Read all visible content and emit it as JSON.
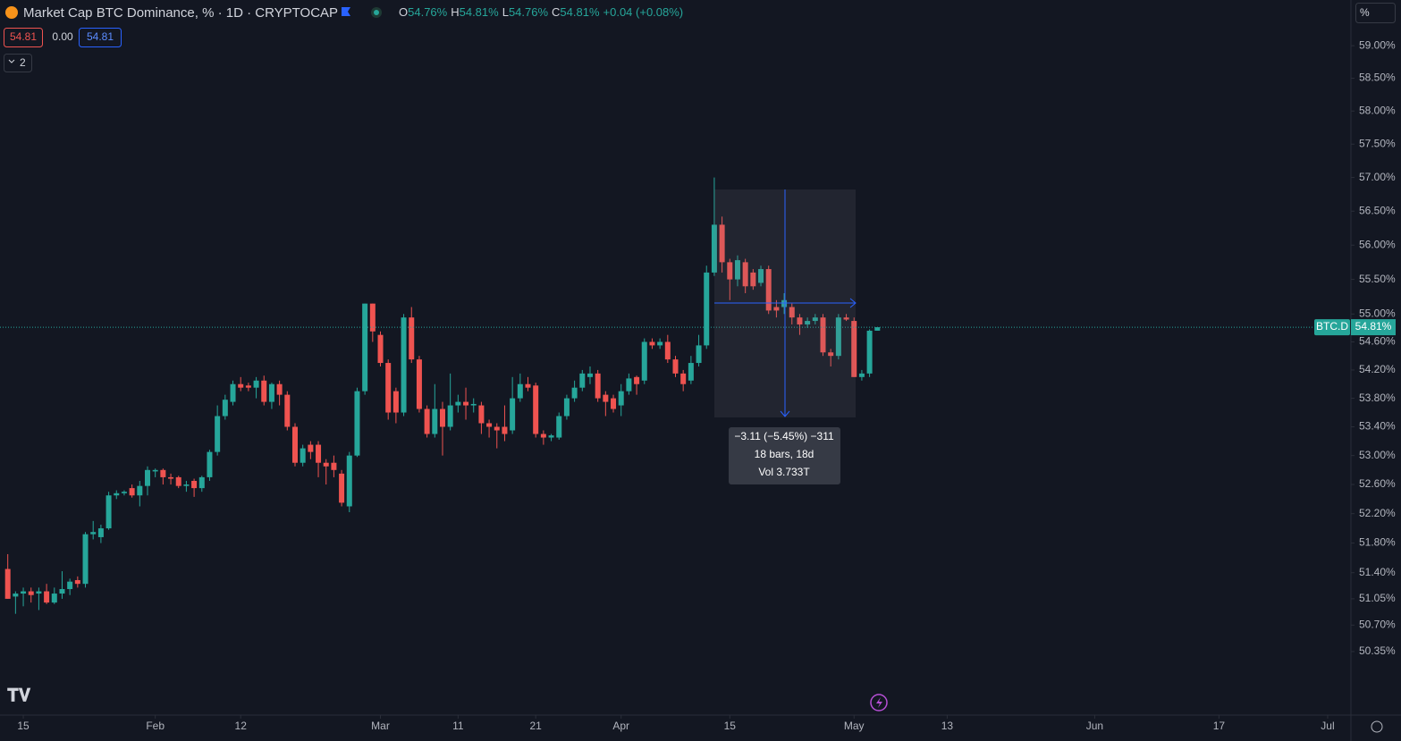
{
  "header": {
    "title": "Market Cap BTC Dominance, % · 1D · CRYPTOCAP",
    "o_label": "O",
    "o": "54.76%",
    "h_label": "H",
    "h": "54.81%",
    "l_label": "L",
    "l": "54.76%",
    "c_label": "C",
    "c": "54.81%",
    "change": "+0.04 (+0.08%)",
    "bid": "54.81",
    "spread": "0.00",
    "ask": "54.81",
    "indicators": "2",
    "scale_button": "%"
  },
  "price_tag": {
    "symbol": "BTC.D",
    "value": "54.81%"
  },
  "measure": {
    "line1": "−3.11 (−5.45%) −311",
    "line2": "18 bars, 18d",
    "line3": "Vol 3.733T"
  },
  "chart_data": {
    "type": "candlestick",
    "log_scale": true,
    "grid": false,
    "up_color": "#26a69a",
    "down_color": "#ef5350",
    "x": [
      "01-13",
      "01-14",
      "01-15",
      "01-16",
      "01-17",
      "01-18",
      "01-19",
      "01-20",
      "01-21",
      "01-22",
      "01-23",
      "01-24",
      "01-25",
      "01-26",
      "01-27",
      "01-28",
      "01-29",
      "01-30",
      "01-31",
      "02-01",
      "02-02",
      "02-03",
      "02-04",
      "02-05",
      "02-06",
      "02-07",
      "02-08",
      "02-09",
      "02-10",
      "02-11",
      "02-12",
      "02-13",
      "02-14",
      "02-15",
      "02-16",
      "02-17",
      "02-18",
      "02-19",
      "02-20",
      "02-21",
      "02-22",
      "02-23",
      "02-24",
      "02-25",
      "02-26",
      "02-27",
      "02-28",
      "02-29",
      "03-01",
      "03-02",
      "03-03",
      "03-04",
      "03-05",
      "03-06",
      "03-07",
      "03-08",
      "03-09",
      "03-10",
      "03-11",
      "03-12",
      "03-13",
      "03-14",
      "03-15",
      "03-16",
      "03-17",
      "03-18",
      "03-19",
      "03-20",
      "03-21",
      "03-22",
      "03-23",
      "03-24",
      "03-25",
      "03-26",
      "03-27",
      "03-28",
      "03-29",
      "03-30",
      "03-31",
      "04-01",
      "04-02",
      "04-03",
      "04-04",
      "04-05",
      "04-06",
      "04-07",
      "04-08",
      "04-09",
      "04-10",
      "04-11",
      "04-12",
      "04-13",
      "04-14",
      "04-15",
      "04-16",
      "04-17",
      "04-18",
      "04-19",
      "04-20",
      "04-21",
      "04-22",
      "04-23",
      "04-24",
      "04-25",
      "04-26",
      "04-27",
      "04-28",
      "04-29",
      "04-30",
      "05-01",
      "05-02",
      "05-03",
      "05-04"
    ],
    "open": [
      51.45,
      51.08,
      51.12,
      51.15,
      51.12,
      51.15,
      51.0,
      51.12,
      51.18,
      51.3,
      51.25,
      51.92,
      51.88,
      52.0,
      52.45,
      52.48,
      52.55,
      52.45,
      52.58,
      52.78,
      52.8,
      52.7,
      52.7,
      52.58,
      52.65,
      52.55,
      52.7,
      53.05,
      53.55,
      53.75,
      54.0,
      53.98,
      53.95,
      54.05,
      53.75,
      54.0,
      53.85,
      53.4,
      52.9,
      53.15,
      53.15,
      52.9,
      52.9,
      52.75,
      52.3,
      53.0,
      53.9,
      55.15,
      54.7,
      54.3,
      53.9,
      53.6,
      54.95,
      54.35,
      53.65,
      53.3,
      53.65,
      53.4,
      53.7,
      53.75,
      53.7,
      53.7,
      53.45,
      53.4,
      53.4,
      53.35,
      53.8,
      54.0,
      53.98,
      53.3,
      53.25,
      53.25,
      53.55,
      53.8,
      53.95,
      54.1,
      54.15,
      53.85,
      53.8,
      53.7,
      53.9,
      54.1,
      54.05,
      54.6,
      54.55,
      54.6,
      54.35,
      54.15,
      54.05,
      54.3,
      54.55,
      55.6,
      56.3,
      55.75,
      55.5,
      55.75,
      55.6,
      55.45,
      55.65,
      55.1,
      55.1,
      55.1,
      54.95,
      54.85,
      54.9,
      54.95,
      54.45,
      54.4,
      54.95,
      54.9,
      54.1,
      54.15,
      54.76
    ],
    "high": [
      51.65,
      51.15,
      51.2,
      51.2,
      51.2,
      51.25,
      51.2,
      51.42,
      51.32,
      51.35,
      51.95,
      52.1,
      52.05,
      52.5,
      52.52,
      52.52,
      52.6,
      52.65,
      52.85,
      52.82,
      52.82,
      52.75,
      52.72,
      52.65,
      52.68,
      52.72,
      53.08,
      53.7,
      53.85,
      54.05,
      54.1,
      54.02,
      54.1,
      54.12,
      54.02,
      54.05,
      53.9,
      53.45,
      53.15,
      53.2,
      53.2,
      52.95,
      53.0,
      52.8,
      53.05,
      53.95,
      55.15,
      55.15,
      54.75,
      54.35,
      53.95,
      55.0,
      55.1,
      54.4,
      53.7,
      54.0,
      53.75,
      54.15,
      53.85,
      53.95,
      53.8,
      53.75,
      53.5,
      53.45,
      53.7,
      54.1,
      54.15,
      54.1,
      54.02,
      53.35,
      53.3,
      53.6,
      53.85,
      54.05,
      54.2,
      54.25,
      54.2,
      53.9,
      53.85,
      54.0,
      54.15,
      54.12,
      54.65,
      54.65,
      54.65,
      54.7,
      54.4,
      54.2,
      54.4,
      54.7,
      55.7,
      57.0,
      56.42,
      55.8,
      55.85,
      55.8,
      55.65,
      55.7,
      55.7,
      55.2,
      55.3,
      55.15,
      55.0,
      54.95,
      55.0,
      55.0,
      54.5,
      55.0,
      55.0,
      54.95,
      54.2,
      54.78,
      54.81
    ],
    "low": [
      51.05,
      50.85,
      50.95,
      51.0,
      50.9,
      50.98,
      50.98,
      51.05,
      51.1,
      51.2,
      51.2,
      51.85,
      51.8,
      51.98,
      52.4,
      52.45,
      52.42,
      52.3,
      52.45,
      52.7,
      52.6,
      52.6,
      52.55,
      52.5,
      52.43,
      52.5,
      52.65,
      53.0,
      53.5,
      53.7,
      53.9,
      53.9,
      53.8,
      53.7,
      53.65,
      53.7,
      53.35,
      52.85,
      52.85,
      52.95,
      52.7,
      52.6,
      52.7,
      52.3,
      52.22,
      52.98,
      53.85,
      54.6,
      54.25,
      53.5,
      53.45,
      53.55,
      54.3,
      53.6,
      53.25,
      53.25,
      53.0,
      53.35,
      53.6,
      53.5,
      53.6,
      53.3,
      53.25,
      53.1,
      53.2,
      53.3,
      53.75,
      53.9,
      53.25,
      53.15,
      53.2,
      53.22,
      53.5,
      53.75,
      53.9,
      54.0,
      53.75,
      53.55,
      53.6,
      53.55,
      53.85,
      53.85,
      54.0,
      54.5,
      54.5,
      54.3,
      54.1,
      53.9,
      54.0,
      54.25,
      54.5,
      55.55,
      55.6,
      55.2,
      55.4,
      55.3,
      55.35,
      55.4,
      55.0,
      54.95,
      55.0,
      54.85,
      54.7,
      54.8,
      54.85,
      54.4,
      54.25,
      54.35,
      54.9,
      54.1,
      54.05,
      54.1,
      54.76
    ],
    "close": [
      51.05,
      51.12,
      51.15,
      51.1,
      51.15,
      51.0,
      51.12,
      51.18,
      51.28,
      51.25,
      51.92,
      51.95,
      52.0,
      52.45,
      52.48,
      52.5,
      52.45,
      52.58,
      52.8,
      52.8,
      52.7,
      52.68,
      52.58,
      52.6,
      52.55,
      52.7,
      53.05,
      53.55,
      53.78,
      54.0,
      53.95,
      53.95,
      54.05,
      53.75,
      54.0,
      53.85,
      53.4,
      52.9,
      53.1,
      53.05,
      52.9,
      52.85,
      52.8,
      52.35,
      53.0,
      53.9,
      55.15,
      54.75,
      54.3,
      53.6,
      53.6,
      54.95,
      54.35,
      53.65,
      53.3,
      53.65,
      53.4,
      53.7,
      53.75,
      53.7,
      53.72,
      53.45,
      53.4,
      53.35,
      53.3,
      53.8,
      54.0,
      53.95,
      53.3,
      53.25,
      53.28,
      53.55,
      53.8,
      53.95,
      54.15,
      54.15,
      53.8,
      53.75,
      53.65,
      53.9,
      54.08,
      54.0,
      54.6,
      54.55,
      54.6,
      54.35,
      54.15,
      54.0,
      54.3,
      54.55,
      55.6,
      56.3,
      55.75,
      55.5,
      55.78,
      55.4,
      55.4,
      55.65,
      55.05,
      55.05,
      55.2,
      54.95,
      54.85,
      54.9,
      54.95,
      54.45,
      54.4,
      54.95,
      54.92,
      54.1,
      54.15,
      54.76,
      54.81
    ],
    "ylim": [
      49.52,
      59.71
    ],
    "yticks": [
      {
        "value": 59,
        "label": "59.00%"
      },
      {
        "value": 58.5,
        "label": "58.50%"
      },
      {
        "value": 58,
        "label": "58.00%"
      },
      {
        "value": 57.5,
        "label": "57.50%"
      },
      {
        "value": 57,
        "label": "57.00%"
      },
      {
        "value": 56.5,
        "label": "56.50%"
      },
      {
        "value": 56,
        "label": "56.00%"
      },
      {
        "value": 55.5,
        "label": "55.50%"
      },
      {
        "value": 55,
        "label": "55.00%"
      },
      {
        "value": 54.6,
        "label": "54.60%"
      },
      {
        "value": 54.2,
        "label": "54.20%"
      },
      {
        "value": 53.8,
        "label": "53.80%"
      },
      {
        "value": 53.4,
        "label": "53.40%"
      },
      {
        "value": 53,
        "label": "53.00%"
      },
      {
        "value": 52.6,
        "label": "52.60%"
      },
      {
        "value": 52.2,
        "label": "52.20%"
      },
      {
        "value": 51.8,
        "label": "51.80%"
      },
      {
        "value": 51.4,
        "label": "51.40%"
      },
      {
        "value": 51.05,
        "label": "51.05%"
      },
      {
        "value": 50.7,
        "label": "50.70%"
      },
      {
        "value": 50.35,
        "label": "50.35%"
      }
    ],
    "xlim": [
      "01-12",
      "07-04"
    ],
    "xticks": [
      {
        "value": "01-15",
        "label": "15"
      },
      {
        "value": "02-01",
        "label": "Feb"
      },
      {
        "value": "02-12",
        "label": "12"
      },
      {
        "value": "03-01",
        "label": "Mar"
      },
      {
        "value": "03-11",
        "label": "11"
      },
      {
        "value": "03-21",
        "label": "21"
      },
      {
        "value": "04-01",
        "label": "Apr"
      },
      {
        "value": "04-15",
        "label": "15"
      },
      {
        "value": "05-01",
        "label": "May"
      },
      {
        "value": "05-13",
        "label": "13"
      },
      {
        "value": "06-01",
        "label": "Jun"
      },
      {
        "value": "06-17",
        "label": "17"
      },
      {
        "value": "07-01",
        "label": "Jul"
      }
    ]
  }
}
